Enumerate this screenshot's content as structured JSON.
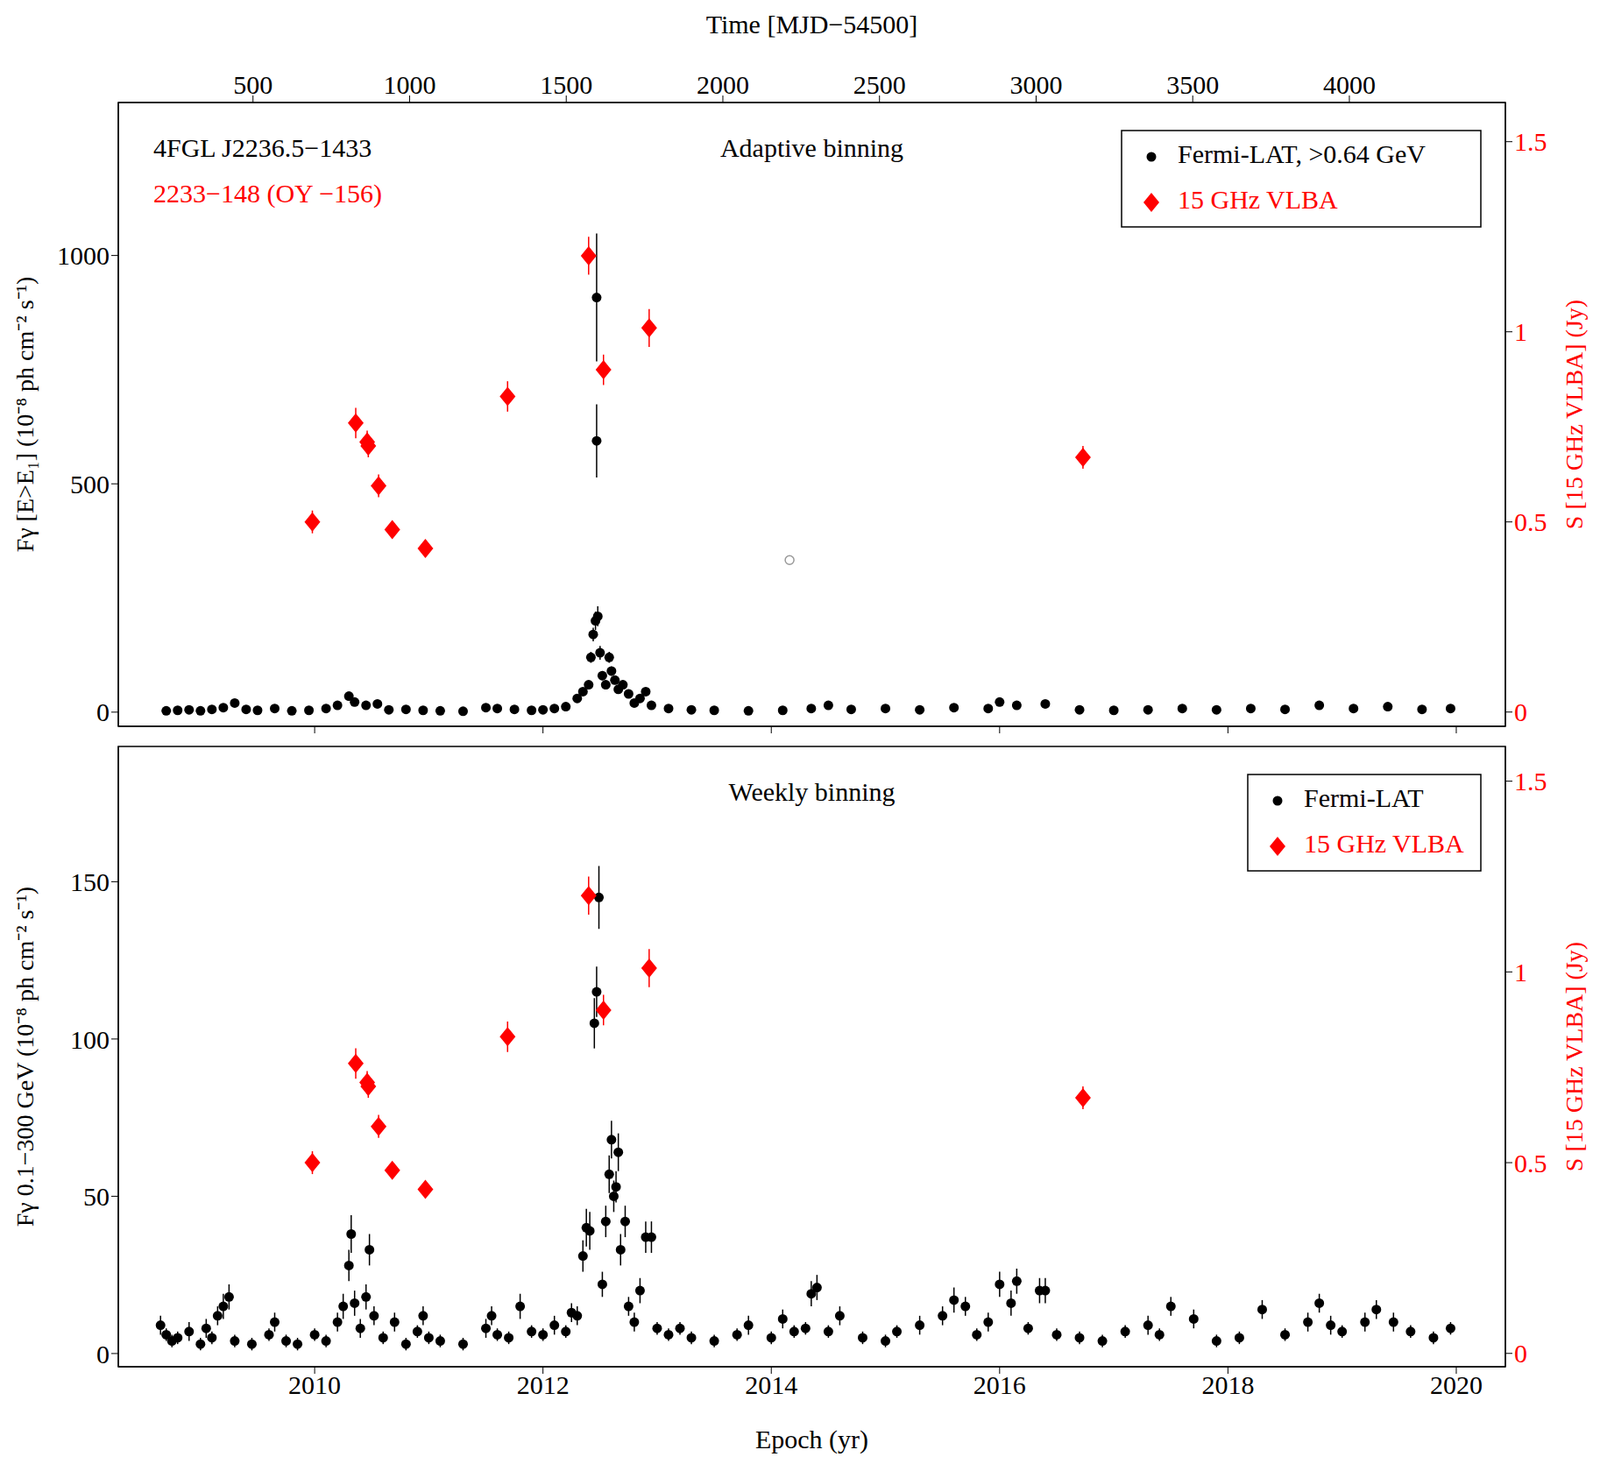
{
  "chart_data": [
    {
      "type": "scatter",
      "title": "Adaptive binning",
      "annotations": [
        {
          "text": "4FGL J2236.5−1433",
          "color": "#000000"
        },
        {
          "text": "2233−148 (OY −156)",
          "color": "#ff0000"
        }
      ],
      "top_axis": {
        "label": "Time [MJD−54500]",
        "lim": [
          70,
          4498
        ],
        "ticks": [
          500,
          1000,
          1500,
          2000,
          2500,
          3000,
          3500,
          4000
        ]
      },
      "xlim": [
        2008.28,
        2020.43
      ],
      "xticks": [
        2010,
        2012,
        2014,
        2016,
        2018,
        2020
      ],
      "ylabel": "Fγ [E>E₁] (10⁻⁸ ph cm⁻² s⁻¹)",
      "ylim": [
        -31,
        1335
      ],
      "yticks": [
        0,
        500,
        1000
      ],
      "y2label": "S [15 GHz VLBA] (Jy)",
      "y2lim": [
        -0.0375,
        1.603
      ],
      "y2ticks": [
        0,
        0.5,
        1,
        1.5
      ],
      "legend": "upper right",
      "series": [
        {
          "name": "Fermi-LAT, >0.64 GeV",
          "color": "#000000",
          "marker": "circle",
          "x": [
            2008.7,
            2008.8,
            2008.9,
            2009.0,
            2009.1,
            2009.2,
            2009.3,
            2009.4,
            2009.5,
            2009.65,
            2009.8,
            2009.95,
            2010.1,
            2010.2,
            2010.3,
            2010.35,
            2010.45,
            2010.55,
            2010.65,
            2010.8,
            2010.95,
            2011.1,
            2011.3,
            2011.5,
            2011.6,
            2011.75,
            2011.9,
            2012.0,
            2012.1,
            2012.2,
            2012.3,
            2012.35,
            2012.4,
            2012.42,
            2012.44,
            2012.46,
            2012.47,
            2012.47,
            2012.48,
            2012.5,
            2012.52,
            2012.55,
            2012.58,
            2012.6,
            2012.63,
            2012.66,
            2012.7,
            2012.75,
            2012.8,
            2012.85,
            2012.9,
            2012.95,
            2013.1,
            2013.3,
            2013.5,
            2013.8,
            2014.1,
            2014.35,
            2014.5,
            2014.7,
            2015.0,
            2015.3,
            2015.6,
            2015.9,
            2016.0,
            2016.15,
            2016.4,
            2016.7,
            2017.0,
            2017.3,
            2017.6,
            2017.9,
            2018.2,
            2018.5,
            2018.8,
            2019.1,
            2019.4,
            2019.7,
            2019.95
          ],
          "values": [
            3,
            4,
            5,
            3,
            6,
            10,
            20,
            6,
            4,
            8,
            3,
            4,
            8,
            15,
            35,
            22,
            15,
            18,
            5,
            6,
            4,
            3,
            2,
            10,
            8,
            6,
            4,
            5,
            8,
            12,
            30,
            45,
            60,
            120,
            170,
            200,
            908,
            594,
            210,
            130,
            80,
            60,
            120,
            90,
            70,
            50,
            60,
            40,
            20,
            30,
            45,
            15,
            8,
            5,
            4,
            3,
            4,
            8,
            15,
            6,
            8,
            5,
            10,
            8,
            22,
            15,
            18,
            5,
            4,
            5,
            8,
            5,
            8,
            6,
            15,
            8,
            12,
            6,
            8
          ],
          "errors": [
            2,
            2,
            2,
            2,
            2,
            3,
            4,
            2,
            2,
            2,
            2,
            2,
            2,
            3,
            5,
            4,
            3,
            3,
            2,
            2,
            2,
            2,
            1,
            2,
            2,
            2,
            2,
            2,
            2,
            3,
            5,
            6,
            8,
            12,
            15,
            20,
            140,
            80,
            22,
            15,
            10,
            8,
            12,
            10,
            8,
            6,
            8,
            5,
            4,
            5,
            6,
            3,
            2,
            2,
            2,
            2,
            2,
            2,
            3,
            2,
            2,
            2,
            2,
            2,
            4,
            3,
            3,
            2,
            2,
            2,
            2,
            2,
            2,
            2,
            3,
            2,
            2,
            2,
            2
          ]
        },
        {
          "name": "15 GHz VLBA",
          "color": "#ff0000",
          "marker": "diamond",
          "axis": "y2",
          "x": [
            2009.98,
            2010.36,
            2010.46,
            2010.47,
            2010.56,
            2010.68,
            2010.97,
            2011.69,
            2012.4,
            2012.53,
            2012.93,
            2016.73
          ],
          "values": [
            0.5,
            0.76,
            0.71,
            0.7,
            0.595,
            0.48,
            0.43,
            0.83,
            1.2,
            0.9,
            1.01,
            0.67
          ],
          "errors": [
            0.03,
            0.04,
            0.03,
            0.03,
            0.03,
            0.02,
            0.02,
            0.04,
            0.05,
            0.04,
            0.05,
            0.03
          ]
        }
      ],
      "open_points": {
        "x": [
          2014.16
        ],
        "values": [
          333
        ],
        "color": "#999999",
        "marker": "open circle"
      }
    },
    {
      "type": "scatter",
      "title": "Weekly binning",
      "xlabel": "Epoch (yr)",
      "xlim": [
        2008.28,
        2020.43
      ],
      "xticks": [
        2010,
        2012,
        2014,
        2016,
        2018,
        2020
      ],
      "ylabel": "Fγ 0.1−300 GeV (10⁻⁸ ph cm⁻² s⁻¹)",
      "ylim": [
        -4.2,
        193
      ],
      "yticks": [
        0,
        50,
        100,
        150
      ],
      "y2label": "S [15 GHz VLBA] (Jy)",
      "y2lim": [
        -0.035,
        1.591
      ],
      "y2ticks": [
        0,
        0.5,
        1,
        1.5
      ],
      "legend": "upper right",
      "series": [
        {
          "name": "Fermi-LAT",
          "color": "#000000",
          "marker": "circle",
          "x": [
            2008.65,
            2008.7,
            2008.75,
            2008.8,
            2008.9,
            2009.0,
            2009.05,
            2009.1,
            2009.15,
            2009.2,
            2009.25,
            2009.3,
            2009.45,
            2009.6,
            2009.65,
            2009.75,
            2009.85,
            2010.0,
            2010.1,
            2010.2,
            2010.25,
            2010.3,
            2010.32,
            2010.35,
            2010.4,
            2010.45,
            2010.48,
            2010.52,
            2010.6,
            2010.7,
            2010.8,
            2010.9,
            2010.95,
            2011.0,
            2011.1,
            2011.3,
            2011.5,
            2011.55,
            2011.6,
            2011.7,
            2011.8,
            2011.9,
            2012.0,
            2012.1,
            2012.2,
            2012.25,
            2012.3,
            2012.35,
            2012.38,
            2012.41,
            2012.45,
            2012.47,
            2012.49,
            2012.52,
            2012.55,
            2012.58,
            2012.6,
            2012.62,
            2012.64,
            2012.66,
            2012.68,
            2012.72,
            2012.75,
            2012.8,
            2012.85,
            2012.9,
            2012.95,
            2013.0,
            2013.1,
            2013.2,
            2013.3,
            2013.5,
            2013.7,
            2013.8,
            2014.0,
            2014.1,
            2014.2,
            2014.3,
            2014.35,
            2014.4,
            2014.5,
            2014.6,
            2014.8,
            2015.0,
            2015.1,
            2015.3,
            2015.5,
            2015.6,
            2015.7,
            2015.8,
            2015.9,
            2016.0,
            2016.1,
            2016.15,
            2016.25,
            2016.35,
            2016.4,
            2016.5,
            2016.7,
            2016.9,
            2017.1,
            2017.3,
            2017.4,
            2017.5,
            2017.7,
            2017.9,
            2018.1,
            2018.3,
            2018.5,
            2018.7,
            2018.8,
            2018.9,
            2019.0,
            2019.2,
            2019.3,
            2019.45,
            2019.6,
            2019.8,
            2019.95
          ],
          "values": [
            9,
            6,
            4,
            5,
            7,
            3,
            8,
            5,
            12,
            15,
            18,
            4,
            3,
            6,
            10,
            4,
            3,
            6,
            4,
            10,
            15,
            28,
            38,
            16,
            8,
            18,
            33,
            12,
            5,
            10,
            3,
            7,
            12,
            5,
            4,
            3,
            8,
            12,
            6,
            5,
            15,
            7,
            6,
            9,
            7,
            13,
            12,
            31,
            40,
            39,
            105,
            115,
            145,
            22,
            42,
            57,
            68,
            50,
            53,
            64,
            33,
            42,
            15,
            10,
            20,
            37,
            37,
            8,
            6,
            8,
            5,
            4,
            6,
            9,
            5,
            11,
            7,
            8,
            19,
            21,
            7,
            12,
            5,
            4,
            7,
            9,
            12,
            17,
            15,
            6,
            10,
            22,
            16,
            23,
            8,
            20,
            20,
            6,
            5,
            4,
            7,
            9,
            6,
            15,
            11,
            4,
            5,
            14,
            6,
            10,
            16,
            9,
            7,
            10,
            14,
            10,
            7,
            5,
            8
          ],
          "errors": [
            3,
            2,
            2,
            2,
            3,
            2,
            3,
            2,
            3,
            4,
            4,
            2,
            2,
            2,
            3,
            2,
            2,
            2,
            2,
            3,
            4,
            5,
            6,
            4,
            3,
            4,
            5,
            3,
            2,
            3,
            2,
            2,
            3,
            2,
            2,
            2,
            3,
            3,
            2,
            2,
            4,
            2,
            2,
            3,
            2,
            3,
            3,
            5,
            6,
            6,
            8,
            8,
            10,
            4,
            5,
            6,
            6,
            5,
            5,
            6,
            5,
            5,
            3,
            3,
            4,
            5,
            5,
            2,
            2,
            2,
            2,
            2,
            2,
            3,
            2,
            3,
            2,
            2,
            4,
            4,
            2,
            3,
            2,
            2,
            2,
            3,
            3,
            4,
            3,
            2,
            3,
            4,
            4,
            4,
            2,
            4,
            4,
            2,
            2,
            2,
            2,
            3,
            2,
            3,
            3,
            2,
            2,
            3,
            2,
            3,
            3,
            3,
            2,
            3,
            3,
            3,
            2,
            2,
            2
          ]
        },
        {
          "name": "15 GHz VLBA",
          "color": "#ff0000",
          "marker": "diamond",
          "axis": "y2",
          "x": [
            2009.98,
            2010.36,
            2010.46,
            2010.47,
            2010.56,
            2010.68,
            2010.97,
            2011.69,
            2012.4,
            2012.53,
            2012.93,
            2016.73
          ],
          "values": [
            0.5,
            0.76,
            0.71,
            0.7,
            0.595,
            0.48,
            0.43,
            0.83,
            1.2,
            0.9,
            1.01,
            0.67
          ],
          "errors": [
            0.03,
            0.04,
            0.03,
            0.03,
            0.03,
            0.02,
            0.02,
            0.04,
            0.05,
            0.04,
            0.05,
            0.03
          ]
        }
      ]
    }
  ]
}
